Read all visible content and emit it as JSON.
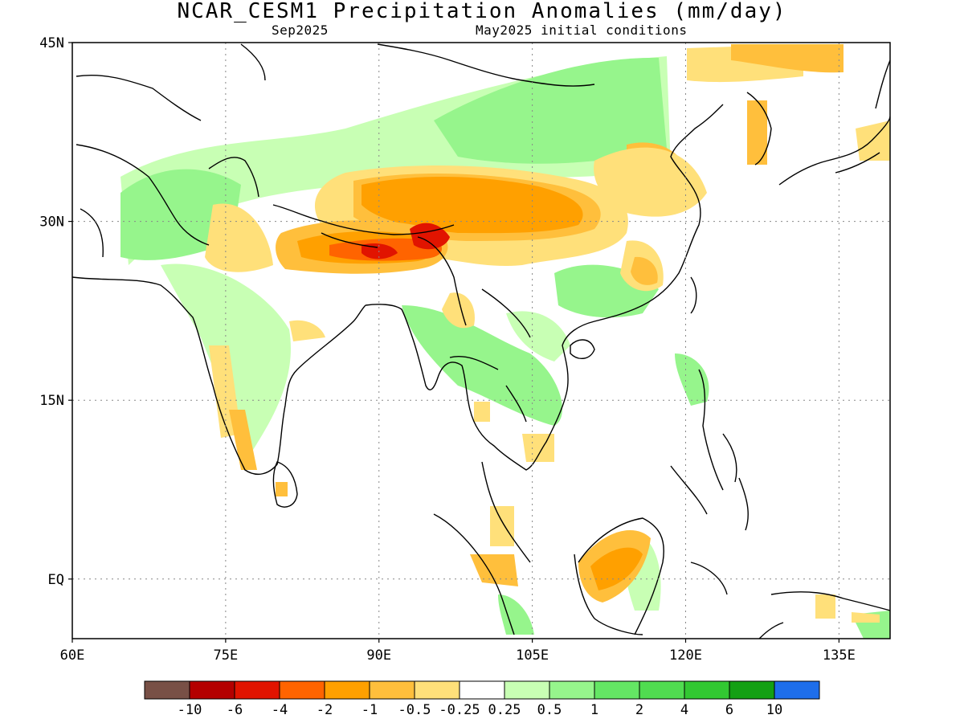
{
  "title": "NCAR_CESM1 Precipitation Anomalies (mm/day)",
  "subtitle_left": "Sep2025",
  "subtitle_right": "May2025 initial conditions",
  "map": {
    "lon_range": [
      60,
      140
    ],
    "lat_range": [
      -5,
      45
    ],
    "x_ticks": [
      {
        "value": 60,
        "label": "60E"
      },
      {
        "value": 75,
        "label": "75E"
      },
      {
        "value": 90,
        "label": "90E"
      },
      {
        "value": 105,
        "label": "105E"
      },
      {
        "value": 120,
        "label": "120E"
      },
      {
        "value": 135,
        "label": "135E"
      }
    ],
    "y_ticks": [
      {
        "value": 45,
        "label": "45N"
      },
      {
        "value": 30,
        "label": "30N"
      },
      {
        "value": 15,
        "label": "15N"
      },
      {
        "value": 0,
        "label": "EQ"
      }
    ],
    "grid": true,
    "colors": {
      "dry_weak": "#ffe07a",
      "dry_mod": "#ffbf3c",
      "dry_strong": "#ffa000",
      "dry_xstrong": "#ff6400",
      "dry_extreme": "#e11400",
      "wet_weak": "#c8ffb4",
      "wet_mod": "#96f58c",
      "wet_strong": "#64e664"
    }
  },
  "colorbar": {
    "colors": [
      "#785046",
      "#b40000",
      "#e11400",
      "#ff6400",
      "#ffa000",
      "#ffbf3c",
      "#ffe07a",
      "#ffffff",
      "#c8ffb4",
      "#96f58c",
      "#64e664",
      "#50dc50",
      "#32c832",
      "#14a014",
      "#1e6eeb"
    ],
    "labels": [
      "-10",
      "-6",
      "-4",
      "-2",
      "-1",
      "-0.5",
      "-0.25",
      "0.25",
      "0.5",
      "1",
      "2",
      "4",
      "6",
      "10"
    ]
  }
}
